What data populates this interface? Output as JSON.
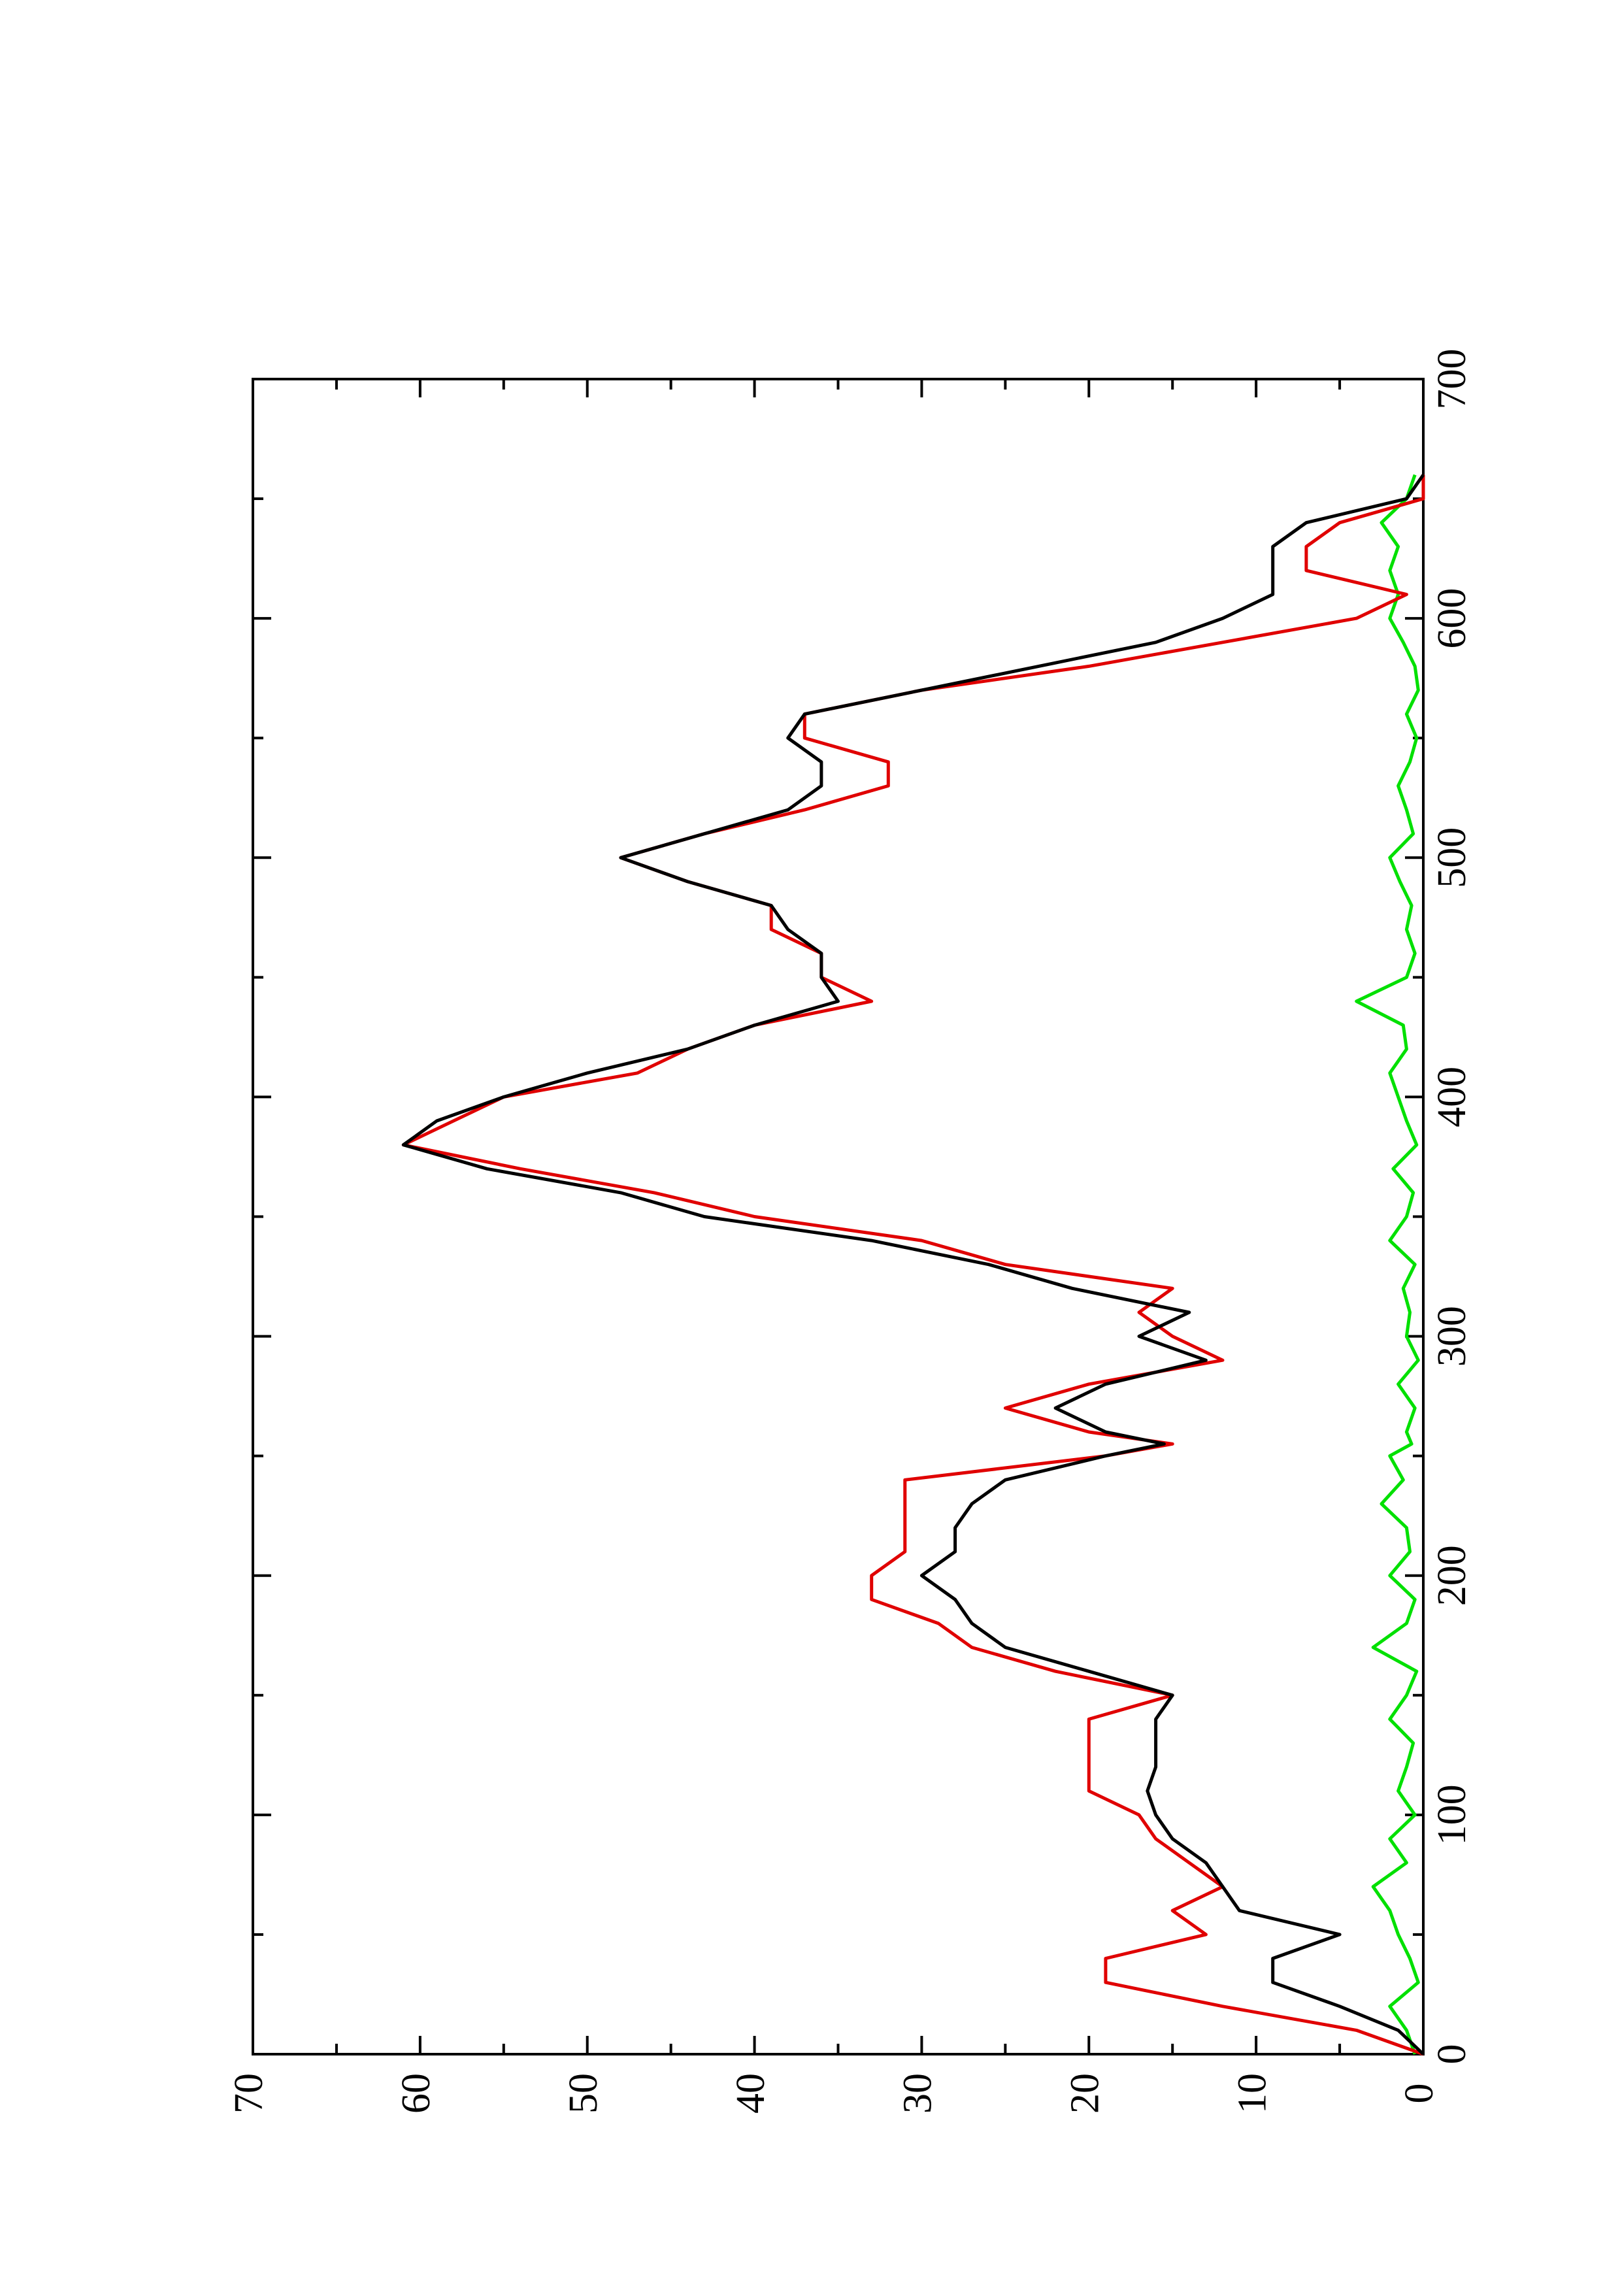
{
  "chart_data": {
    "type": "line",
    "x": [
      0,
      10,
      20,
      30,
      40,
      50,
      60,
      70,
      80,
      90,
      100,
      110,
      120,
      130,
      140,
      150,
      160,
      170,
      180,
      190,
      200,
      210,
      220,
      230,
      240,
      250,
      255,
      260,
      270,
      280,
      290,
      300,
      310,
      320,
      330,
      340,
      350,
      360,
      370,
      380,
      390,
      400,
      410,
      420,
      430,
      440,
      450,
      460,
      470,
      480,
      490,
      500,
      510,
      520,
      530,
      540,
      550,
      560,
      570,
      580,
      590,
      600,
      610,
      620,
      630,
      640,
      650,
      660
    ],
    "series": [
      {
        "color": "#000000",
        "values": [
          0,
          1.5,
          5,
          9,
          9,
          5,
          11,
          12,
          13,
          15,
          16,
          16.5,
          16,
          16,
          16,
          15,
          20,
          25,
          27,
          28,
          30,
          28,
          28,
          27,
          25,
          19,
          15.5,
          19,
          22,
          19,
          13,
          17,
          14,
          21,
          26,
          33,
          43,
          48,
          56,
          61,
          59,
          55,
          50,
          44,
          40,
          35,
          36,
          36,
          38,
          39,
          44,
          48,
          43,
          38,
          36,
          36,
          38,
          37,
          30,
          23,
          16,
          12,
          9,
          9,
          9,
          7,
          1,
          0
        ]
      },
      {
        "color": "#e00000",
        "values": [
          0,
          4,
          12,
          19,
          19,
          13,
          15,
          12,
          14,
          16,
          17,
          20,
          20,
          20,
          20,
          15,
          22,
          27,
          29,
          33,
          33,
          31,
          31,
          31,
          31,
          19,
          15,
          20,
          25,
          20,
          12,
          15,
          17,
          15,
          25,
          30,
          40,
          46,
          54,
          61,
          58,
          55,
          47,
          44,
          40,
          33,
          36,
          36,
          39,
          39,
          44,
          48,
          43,
          37,
          32,
          32,
          37,
          37,
          30,
          20,
          12,
          4,
          1,
          7,
          7,
          5,
          0,
          0
        ]
      },
      {
        "color": "#00e000",
        "values": [
          0.5,
          1,
          2,
          0.3,
          0.8,
          1.5,
          2,
          3,
          1,
          2,
          0.5,
          1.5,
          1,
          0.6,
          2,
          1,
          0.4,
          3,
          1,
          0.5,
          2,
          0.8,
          1,
          2.5,
          1.2,
          2,
          0.7,
          1,
          0.5,
          1.5,
          0.3,
          1,
          0.8,
          1.2,
          0.5,
          2,
          1,
          0.6,
          1.8,
          0.4,
          1,
          1.5,
          2,
          1,
          1.2,
          4,
          1,
          0.5,
          1,
          0.7,
          1.4,
          2,
          0.6,
          1,
          1.5,
          0.8,
          0.4,
          1,
          0.3,
          0.5,
          1.2,
          2,
          1.5,
          2,
          1.5,
          2.5,
          1,
          0.5
        ]
      }
    ],
    "xlim": [
      0,
      700
    ],
    "xticks": [
      0,
      100,
      200,
      300,
      400,
      500,
      600,
      700
    ],
    "ylim": [
      0,
      70
    ],
    "yticks": [
      0,
      10,
      20,
      30,
      40,
      50,
      60,
      70
    ]
  }
}
